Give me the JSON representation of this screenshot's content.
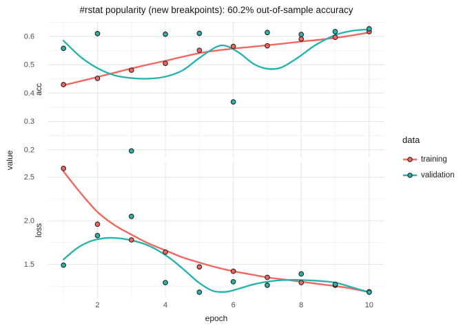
{
  "chart_data": {
    "type": "line",
    "title": "#rstat popularity (new breakpoints): 60.2% out-of-sample accuracy",
    "xlabel": "epoch",
    "ylabel": "value",
    "legend_title": "data",
    "legend_position": "right",
    "grid": true,
    "xticks": [
      "2",
      "4",
      "6",
      "8",
      "10"
    ],
    "xtick_values": [
      2,
      4,
      6,
      8,
      10
    ],
    "xlim": [
      1,
      10
    ],
    "colors": {
      "training": "#F4655F",
      "validation": "#26B3AC"
    },
    "point_outline": "#242424",
    "grid_major_color": "#E8E8E8",
    "grid_minor_color": "#F2F2F2",
    "axis_text_color": "#4D4D4D",
    "facets": [
      {
        "label": "acc",
        "yticks": [
          0.2,
          0.3,
          0.4,
          0.5,
          0.6
        ],
        "ytick_labels": [
          "0.2",
          "0.3",
          "0.4",
          "0.5",
          "0.6"
        ],
        "ylim": [
          0.173,
          0.651
        ],
        "series": [
          {
            "name": "training",
            "points": [
              [
                1,
                0.43
              ],
              [
                2,
                0.452
              ],
              [
                3,
                0.481
              ],
              [
                4,
                0.505
              ],
              [
                5,
                0.551
              ],
              [
                6,
                0.565
              ],
              [
                7,
                0.567
              ],
              [
                8,
                0.591
              ],
              [
                9,
                0.597
              ],
              [
                10,
                0.617
              ]
            ],
            "smooth": [
              [
                1,
                0.428
              ],
              [
                1.5,
                0.442
              ],
              [
                2,
                0.457
              ],
              [
                2.5,
                0.472
              ],
              [
                3,
                0.487
              ],
              [
                3.5,
                0.501
              ],
              [
                4,
                0.514
              ],
              [
                4.5,
                0.528
              ],
              [
                5,
                0.541
              ],
              [
                5.5,
                0.55
              ],
              [
                6,
                0.557
              ],
              [
                6.5,
                0.563
              ],
              [
                7,
                0.569
              ],
              [
                7.5,
                0.575
              ],
              [
                8,
                0.582
              ],
              [
                8.5,
                0.588
              ],
              [
                9,
                0.595
              ],
              [
                9.5,
                0.604
              ],
              [
                10,
                0.614
              ]
            ]
          },
          {
            "name": "validation",
            "points": [
              [
                1,
                0.558
              ],
              [
                2,
                0.61
              ],
              [
                3,
                0.196
              ],
              [
                4,
                0.608
              ],
              [
                5,
                0.611
              ],
              [
                6,
                0.369
              ],
              [
                7,
                0.614
              ],
              [
                8,
                0.607
              ],
              [
                9,
                0.617
              ],
              [
                10,
                0.627
              ]
            ],
            "smooth": [
              [
                1,
                0.585
              ],
              [
                1.5,
                0.528
              ],
              [
                2,
                0.488
              ],
              [
                2.5,
                0.463
              ],
              [
                3,
                0.453
              ],
              [
                3.5,
                0.451
              ],
              [
                4,
                0.458
              ],
              [
                4.5,
                0.48
              ],
              [
                5,
                0.524
              ],
              [
                5.5,
                0.563
              ],
              [
                5.8,
                0.566
              ],
              [
                6.2,
                0.54
              ],
              [
                6.6,
                0.503
              ],
              [
                7,
                0.486
              ],
              [
                7.4,
                0.49
              ],
              [
                7.9,
                0.525
              ],
              [
                8.4,
                0.568
              ],
              [
                9,
                0.605
              ],
              [
                9.5,
                0.62
              ],
              [
                10,
                0.625
              ]
            ]
          }
        ]
      },
      {
        "label": "loss",
        "yticks": [
          1.5,
          2.0,
          2.5
        ],
        "ytick_labels": [
          "1.5",
          "2.0",
          "2.5"
        ],
        "ylim": [
          1.109,
          2.671
        ],
        "series": [
          {
            "name": "training",
            "points": [
              [
                1,
                2.6
              ],
              [
                2,
                1.96
              ],
              [
                3,
                1.78
              ],
              [
                4,
                1.64
              ],
              [
                5,
                1.47
              ],
              [
                6,
                1.42
              ],
              [
                7,
                1.35
              ],
              [
                8,
                1.29
              ],
              [
                9,
                1.26
              ],
              [
                10,
                1.185
              ]
            ],
            "smooth": [
              [
                1,
                2.565
              ],
              [
                1.5,
                2.32
              ],
              [
                2,
                2.1
              ],
              [
                2.5,
                1.95
              ],
              [
                3,
                1.84
              ],
              [
                3.5,
                1.74
              ],
              [
                4,
                1.66
              ],
              [
                4.5,
                1.58
              ],
              [
                5,
                1.52
              ],
              [
                5.5,
                1.465
              ],
              [
                6,
                1.42
              ],
              [
                6.5,
                1.385
              ],
              [
                7,
                1.35
              ],
              [
                7.5,
                1.325
              ],
              [
                8,
                1.3
              ],
              [
                8.5,
                1.275
              ],
              [
                9,
                1.25
              ],
              [
                9.5,
                1.22
              ],
              [
                10,
                1.18
              ]
            ]
          },
          {
            "name": "validation",
            "points": [
              [
                1,
                1.49
              ],
              [
                2,
                1.83
              ],
              [
                3,
                2.05
              ],
              [
                4,
                1.29
              ],
              [
                5,
                1.18
              ],
              [
                6,
                1.3
              ],
              [
                7,
                1.26
              ],
              [
                8,
                1.39
              ],
              [
                9,
                1.27
              ],
              [
                10,
                1.18
              ]
            ],
            "smooth": [
              [
                1,
                1.555
              ],
              [
                1.4,
                1.685
              ],
              [
                1.8,
                1.765
              ],
              [
                2.2,
                1.8
              ],
              [
                2.6,
                1.8
              ],
              [
                3,
                1.775
              ],
              [
                3.4,
                1.73
              ],
              [
                3.8,
                1.655
              ],
              [
                4.2,
                1.55
              ],
              [
                4.6,
                1.42
              ],
              [
                5,
                1.285
              ],
              [
                5.4,
                1.195
              ],
              [
                5.8,
                1.185
              ],
              [
                6.2,
                1.225
              ],
              [
                6.6,
                1.27
              ],
              [
                7,
                1.3
              ],
              [
                7.5,
                1.32
              ],
              [
                8,
                1.32
              ],
              [
                8.5,
                1.31
              ],
              [
                9,
                1.29
              ],
              [
                9.5,
                1.235
              ],
              [
                10,
                1.18
              ]
            ]
          }
        ]
      }
    ]
  }
}
